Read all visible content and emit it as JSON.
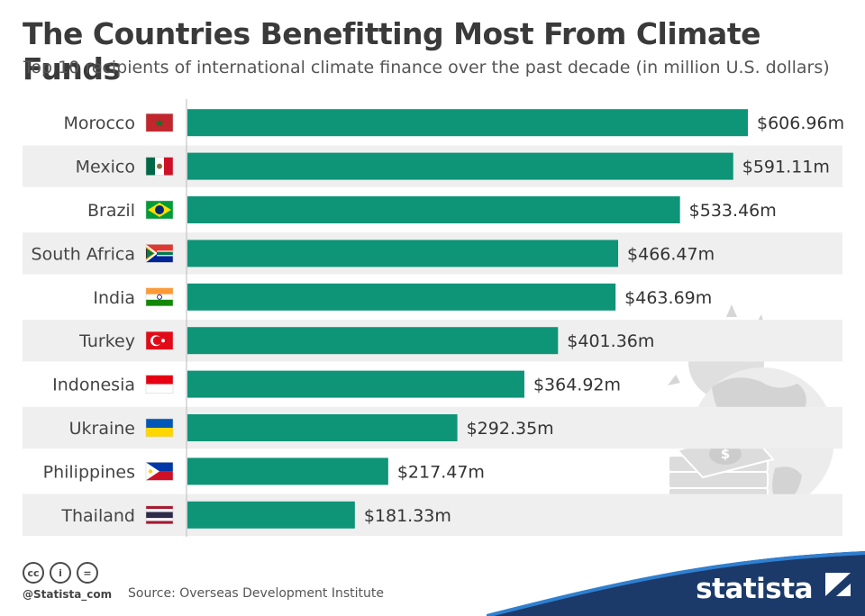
{
  "header": {
    "title": "The Countries Benefitting Most From Climate Funds",
    "subtitle": "Top 10 recipients of international climate finance over the past decade (in million U.S. dollars)"
  },
  "footer": {
    "handle": "@Statista_com",
    "source": "Source: Overseas Development Institute",
    "brand": "statista"
  },
  "colors": {
    "bar": "#0e9477",
    "row_alt": "#efefef",
    "label": "#444444"
  },
  "chart_data": {
    "type": "bar",
    "orientation": "horizontal",
    "title": "The Countries Benefitting Most From Climate Funds",
    "subtitle": "Top 10 recipients of international climate finance over the past decade (in million U.S. dollars)",
    "categories": [
      "Morocco",
      "Mexico",
      "Brazil",
      "South Africa",
      "India",
      "Turkey",
      "Indonesia",
      "Ukraine",
      "Philippines",
      "Thailand"
    ],
    "values": [
      606.96,
      591.11,
      533.46,
      466.47,
      463.69,
      401.36,
      364.92,
      292.35,
      217.47,
      181.33
    ],
    "value_labels": [
      "$606.96m",
      "$591.11m",
      "$533.46m",
      "$466.47m",
      "$463.69m",
      "$401.36m",
      "$364.92m",
      "$292.35m",
      "$217.47m",
      "$181.33m"
    ],
    "flags": [
      "morocco-flag-icon",
      "mexico-flag-icon",
      "brazil-flag-icon",
      "south-africa-flag-icon",
      "india-flag-icon",
      "turkey-flag-icon",
      "indonesia-flag-icon",
      "ukraine-flag-icon",
      "philippines-flag-icon",
      "thailand-flag-icon"
    ],
    "xlim": [
      0,
      606.96
    ],
    "grid": false,
    "legend": "none"
  },
  "decoration": [
    "globe-with-sun-and-money-icon"
  ]
}
